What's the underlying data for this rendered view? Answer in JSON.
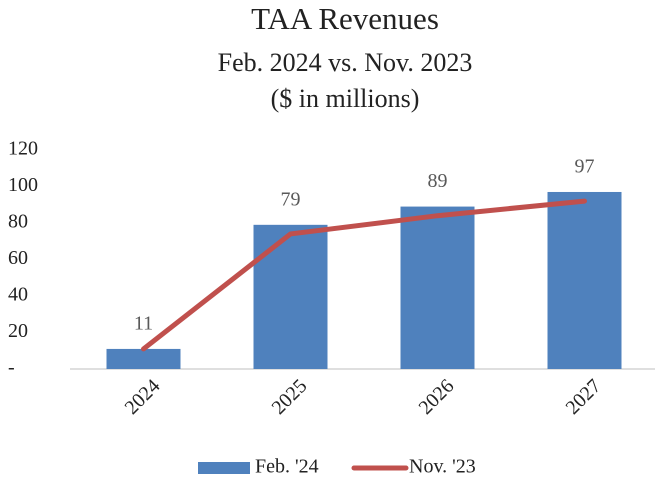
{
  "chart_data": {
    "type": "combo",
    "title": "TAA Revenues",
    "subtitle": [
      "Feb. 2024 vs. Nov. 2023",
      "($ in millions)"
    ],
    "categories": [
      "2024",
      "2025",
      "2026",
      "2027"
    ],
    "series": [
      {
        "name": "Feb. '24",
        "type": "bar",
        "color": "#4f81bd",
        "values": [
          11,
          79,
          89,
          97
        ]
      },
      {
        "name": "Nov. '23",
        "type": "line",
        "color": "#c0504d",
        "values": [
          11,
          74,
          84,
          92
        ]
      }
    ],
    "ylim": [
      0,
      120
    ],
    "yticks": [
      {
        "value": 0,
        "label": "-"
      },
      20,
      40,
      60,
      80,
      100,
      120
    ],
    "legend": "bottom"
  }
}
